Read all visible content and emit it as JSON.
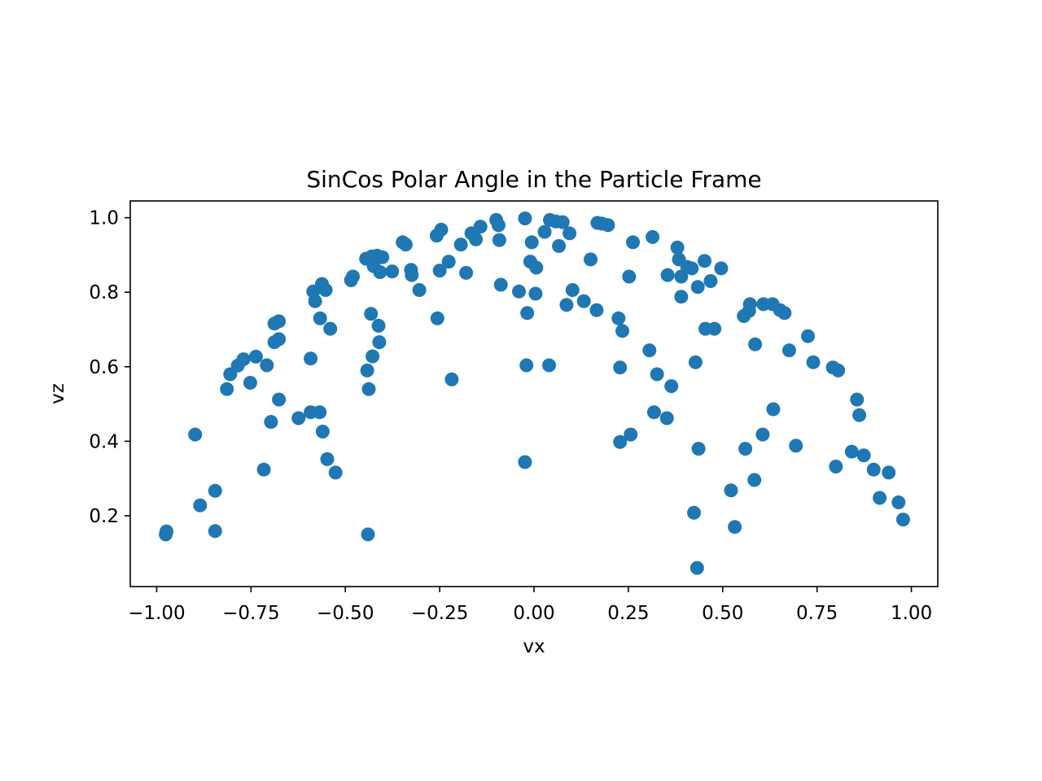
{
  "chart_data": {
    "type": "scatter",
    "title": "SinCos Polar Angle in the Particle Frame",
    "xlabel": "vx",
    "ylabel": "vz",
    "xlim": [
      -1.07,
      1.07
    ],
    "ylim": [
      0.01,
      1.045
    ],
    "xticks": [
      -1.0,
      -0.75,
      -0.5,
      -0.25,
      0.0,
      0.25,
      0.5,
      0.75,
      1.0
    ],
    "xtick_labels": [
      "−1.00",
      "−0.75",
      "−0.50",
      "−0.25",
      "0.00",
      "0.25",
      "0.50",
      "0.75",
      "1.00"
    ],
    "yticks": [
      0.2,
      0.4,
      0.6,
      0.8,
      1.0
    ],
    "ytick_labels": [
      "0.2",
      "0.4",
      "0.6",
      "0.8",
      "1.0"
    ],
    "grid": false,
    "marker_color": "#1f77b4",
    "points": [
      [
        -0.976,
        0.15
      ],
      [
        -0.974,
        0.158
      ],
      [
        -0.898,
        0.418
      ],
      [
        -0.885,
        0.228
      ],
      [
        -0.845,
        0.267
      ],
      [
        -0.845,
        0.159
      ],
      [
        -0.814,
        0.54
      ],
      [
        -0.805,
        0.58
      ],
      [
        -0.785,
        0.603
      ],
      [
        -0.77,
        0.62
      ],
      [
        -0.752,
        0.557
      ],
      [
        -0.737,
        0.627
      ],
      [
        -0.716,
        0.324
      ],
      [
        -0.708,
        0.604
      ],
      [
        -0.697,
        0.452
      ],
      [
        -0.688,
        0.716
      ],
      [
        -0.688,
        0.666
      ],
      [
        -0.676,
        0.722
      ],
      [
        -0.676,
        0.674
      ],
      [
        -0.676,
        0.512
      ],
      [
        -0.624,
        0.462
      ],
      [
        -0.592,
        0.622
      ],
      [
        -0.592,
        0.478
      ],
      [
        -0.585,
        0.802
      ],
      [
        -0.58,
        0.776
      ],
      [
        -0.567,
        0.73
      ],
      [
        -0.568,
        0.478
      ],
      [
        -0.56,
        0.426
      ],
      [
        -0.562,
        0.822
      ],
      [
        -0.552,
        0.806
      ],
      [
        -0.548,
        0.352
      ],
      [
        -0.54,
        0.702
      ],
      [
        -0.526,
        0.316
      ],
      [
        -0.485,
        0.832
      ],
      [
        -0.48,
        0.842
      ],
      [
        -0.445,
        0.89
      ],
      [
        -0.442,
        0.59
      ],
      [
        -0.438,
        0.54
      ],
      [
        -0.44,
        0.15
      ],
      [
        -0.43,
        0.896
      ],
      [
        -0.432,
        0.742
      ],
      [
        -0.428,
        0.628
      ],
      [
        -0.425,
        0.87
      ],
      [
        -0.416,
        0.898
      ],
      [
        -0.412,
        0.71
      ],
      [
        -0.41,
        0.666
      ],
      [
        -0.408,
        0.854
      ],
      [
        -0.402,
        0.894
      ],
      [
        -0.376,
        0.856
      ],
      [
        -0.348,
        0.934
      ],
      [
        -0.34,
        0.928
      ],
      [
        -0.326,
        0.86
      ],
      [
        -0.324,
        0.846
      ],
      [
        -0.304,
        0.806
      ],
      [
        -0.258,
        0.952
      ],
      [
        -0.256,
        0.73
      ],
      [
        -0.25,
        0.858
      ],
      [
        -0.246,
        0.968
      ],
      [
        -0.226,
        0.882
      ],
      [
        -0.218,
        0.566
      ],
      [
        -0.194,
        0.928
      ],
      [
        -0.18,
        0.852
      ],
      [
        -0.166,
        0.958
      ],
      [
        -0.154,
        0.942
      ],
      [
        -0.142,
        0.976
      ],
      [
        -0.1,
        0.994
      ],
      [
        -0.094,
        0.98
      ],
      [
        -0.092,
        0.94
      ],
      [
        -0.088,
        0.82
      ],
      [
        -0.04,
        0.802
      ],
      [
        -0.024,
        0.998
      ],
      [
        -0.024,
        0.344
      ],
      [
        -0.02,
        0.604
      ],
      [
        -0.018,
        0.744
      ],
      [
        -0.01,
        0.882
      ],
      [
        -0.006,
        0.934
      ],
      [
        0.004,
        0.796
      ],
      [
        0.006,
        0.866
      ],
      [
        0.028,
        0.962
      ],
      [
        0.042,
        0.994
      ],
      [
        0.04,
        0.604
      ],
      [
        0.058,
        0.99
      ],
      [
        0.066,
        0.924
      ],
      [
        0.076,
        0.988
      ],
      [
        0.086,
        0.766
      ],
      [
        0.094,
        0.958
      ],
      [
        0.102,
        0.806
      ],
      [
        0.132,
        0.776
      ],
      [
        0.15,
        0.888
      ],
      [
        0.166,
        0.752
      ],
      [
        0.168,
        0.986
      ],
      [
        0.18,
        0.984
      ],
      [
        0.196,
        0.98
      ],
      [
        0.224,
        0.73
      ],
      [
        0.228,
        0.598
      ],
      [
        0.228,
        0.398
      ],
      [
        0.234,
        0.696
      ],
      [
        0.252,
        0.842
      ],
      [
        0.256,
        0.418
      ],
      [
        0.262,
        0.934
      ],
      [
        0.306,
        0.644
      ],
      [
        0.314,
        0.948
      ],
      [
        0.318,
        0.478
      ],
      [
        0.326,
        0.58
      ],
      [
        0.352,
        0.462
      ],
      [
        0.354,
        0.846
      ],
      [
        0.364,
        0.548
      ],
      [
        0.38,
        0.92
      ],
      [
        0.384,
        0.888
      ],
      [
        0.39,
        0.842
      ],
      [
        0.39,
        0.788
      ],
      [
        0.406,
        0.868
      ],
      [
        0.418,
        0.864
      ],
      [
        0.424,
        0.208
      ],
      [
        0.428,
        0.612
      ],
      [
        0.432,
        0.06
      ],
      [
        0.434,
        0.814
      ],
      [
        0.436,
        0.38
      ],
      [
        0.452,
        0.884
      ],
      [
        0.454,
        0.702
      ],
      [
        0.468,
        0.83
      ],
      [
        0.478,
        0.702
      ],
      [
        0.496,
        0.864
      ],
      [
        0.522,
        0.268
      ],
      [
        0.532,
        0.17
      ],
      [
        0.556,
        0.736
      ],
      [
        0.56,
        0.38
      ],
      [
        0.57,
        0.75
      ],
      [
        0.572,
        0.768
      ],
      [
        0.584,
        0.296
      ],
      [
        0.586,
        0.66
      ],
      [
        0.606,
        0.418
      ],
      [
        0.608,
        0.768
      ],
      [
        0.632,
        0.768
      ],
      [
        0.634,
        0.486
      ],
      [
        0.652,
        0.752
      ],
      [
        0.664,
        0.744
      ],
      [
        0.676,
        0.644
      ],
      [
        0.694,
        0.388
      ],
      [
        0.726,
        0.682
      ],
      [
        0.74,
        0.612
      ],
      [
        0.792,
        0.598
      ],
      [
        0.8,
        0.332
      ],
      [
        0.806,
        0.59
      ],
      [
        0.842,
        0.372
      ],
      [
        0.856,
        0.512
      ],
      [
        0.862,
        0.47
      ],
      [
        0.874,
        0.362
      ],
      [
        0.9,
        0.324
      ],
      [
        0.916,
        0.248
      ],
      [
        0.94,
        0.316
      ],
      [
        0.966,
        0.236
      ],
      [
        0.978,
        0.19
      ]
    ]
  }
}
